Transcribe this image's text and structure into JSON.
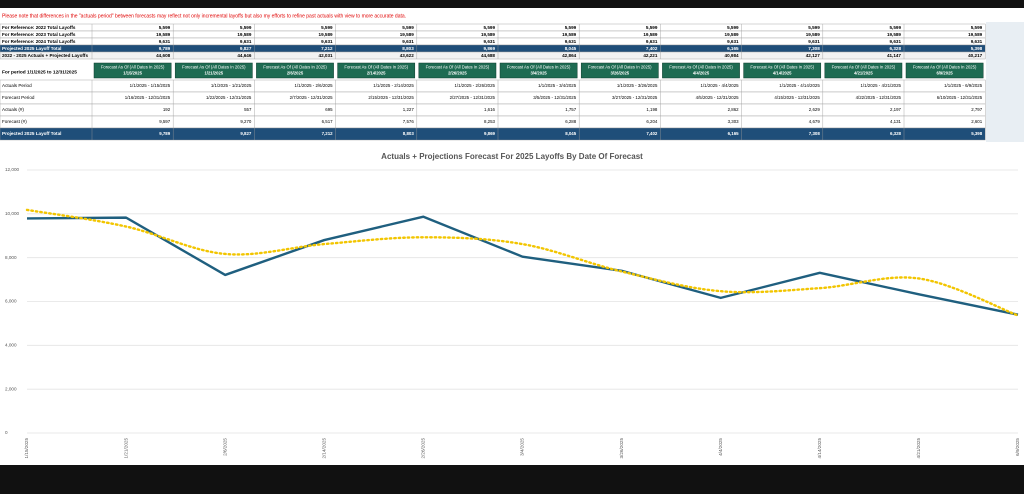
{
  "note": "Please note that differences in the \"actuals period\" between forecasts may reflect not only incremental layoffs but also my efforts to refine past actuals with view to more accurate data.",
  "reference_table": {
    "rows": [
      {
        "label": "For Reference: 2022 Total Layoffs",
        "values": [
          "5,599",
          "5,599",
          "5,599",
          "5,599",
          "5,599",
          "5,599",
          "5,599",
          "5,599",
          "5,599",
          "5,599",
          "5,599"
        ]
      },
      {
        "label": "For Reference: 2023 Total Layoffs",
        "values": [
          "19,589",
          "19,589",
          "19,589",
          "19,589",
          "19,589",
          "19,589",
          "19,589",
          "19,589",
          "19,589",
          "19,589",
          "19,589"
        ]
      },
      {
        "label": "For Reference: 2024 Total Layoffs",
        "values": [
          "9,631",
          "9,631",
          "9,631",
          "9,631",
          "9,631",
          "9,631",
          "9,631",
          "9,631",
          "9,631",
          "9,631",
          "9,631"
        ]
      },
      {
        "label": "Projected 2025 Layoff Total",
        "values": [
          "9,789",
          "9,827",
          "7,212",
          "8,803",
          "9,869",
          "8,045",
          "7,402",
          "6,165",
          "7,308",
          "6,328",
          "5,398"
        ]
      },
      {
        "label": "2022 - 2025 Actuals + Projected Layoffs",
        "values": [
          "44,608",
          "44,646",
          "42,031",
          "43,622",
          "44,688",
          "42,864",
          "42,221",
          "40,984",
          "42,127",
          "41,147",
          "40,217"
        ]
      }
    ]
  },
  "forecast_table": {
    "period": "For period 1/1/2025 to 12/31/2025",
    "column_header": "Forecast As Of (All Dates In 2025)",
    "dates": [
      "1/15/2025",
      "1/21/2025",
      "2/6/2025",
      "2/14/2025",
      "2/26/2025",
      "3/4/2025",
      "3/26/2025",
      "4/4/2025",
      "4/14/2025",
      "4/21/2025",
      "6/9/2025"
    ],
    "rows": [
      {
        "label": "Actuals Period",
        "values": [
          "1/1/2025 - 1/15/2025",
          "1/1/2025 - 1/21/2025",
          "1/1/2025 - 2/6/2025",
          "1/1/2025 - 2/14/2025",
          "1/1/2025 - 2/26/2025",
          "1/1/2025 - 3/4/2025",
          "1/1/2025 - 3/26/2025",
          "1/1/2025 - 4/4/2025",
          "1/1/2025 - 4/14/2025",
          "1/1/2025 - 4/21/2025",
          "1/1/2025 - 6/9/2025"
        ]
      },
      {
        "label": "Forecast Period",
        "values": [
          "1/16/2025 - 12/31/2025",
          "1/22/2025 - 12/31/2025",
          "2/7/2025 - 12/31/2025",
          "2/15/2025 - 12/31/2025",
          "2/27/2025 - 12/31/2025",
          "3/5/2025 - 12/31/2025",
          "3/27/2025 - 12/31/2025",
          "4/5/2025 - 12/31/2025",
          "4/15/2025 - 12/31/2025",
          "4/22/2025 - 12/31/2025",
          "6/10/2025 - 12/31/2025"
        ]
      },
      {
        "label": "Actuals (#)",
        "values": [
          "192",
          "557",
          "695",
          "1,227",
          "1,616",
          "1,757",
          "1,198",
          "2,862",
          "2,629",
          "2,197",
          "2,797"
        ]
      },
      {
        "label": "Forecast (#)",
        "values": [
          "9,597",
          "9,270",
          "6,517",
          "7,576",
          "8,253",
          "6,288",
          "6,204",
          "3,303",
          "4,679",
          "4,131",
          "2,601"
        ]
      },
      {
        "label": "Projected 2025 Layoff Total",
        "values": [
          "9,789",
          "9,827",
          "7,212",
          "8,803",
          "9,869",
          "8,045",
          "7,402",
          "6,165",
          "7,308",
          "6,328",
          "5,398"
        ]
      }
    ]
  },
  "chart_data": {
    "type": "line",
    "title": "Actuals + Projections Forecast For 2025 Layoffs By Date Of Forecast",
    "categories": [
      "1/15/2025",
      "1/21/2025",
      "2/6/2025",
      "2/14/2025",
      "2/26/2025",
      "3/4/2025",
      "3/26/2025",
      "4/4/2025",
      "4/14/2025",
      "4/21/2025",
      "6/9/2025"
    ],
    "series": [
      {
        "color": "#1f5f7f",
        "values": [
          9789,
          9827,
          7212,
          8803,
          9869,
          8045,
          7402,
          6165,
          7308,
          6328,
          5398
        ]
      },
      {
        "color": "#f2c500",
        "style": "dotted",
        "values": [
          10180,
          9420,
          8170,
          8620,
          8930,
          8620,
          7370,
          6470,
          6610,
          7050,
          5360
        ]
      }
    ],
    "ylim": [
      0,
      12000
    ],
    "yticks": [
      0,
      {
        "value": 2000,
        "label": "2,000"
      },
      {
        "value": 4000,
        "label": "4,000"
      },
      {
        "value": 6000,
        "label": "6,000"
      },
      {
        "value": 8000,
        "label": "8,000"
      },
      {
        "value": 10000,
        "label": "10,000"
      },
      {
        "value": 12000,
        "label": "12,000"
      }
    ],
    "grid": true
  }
}
